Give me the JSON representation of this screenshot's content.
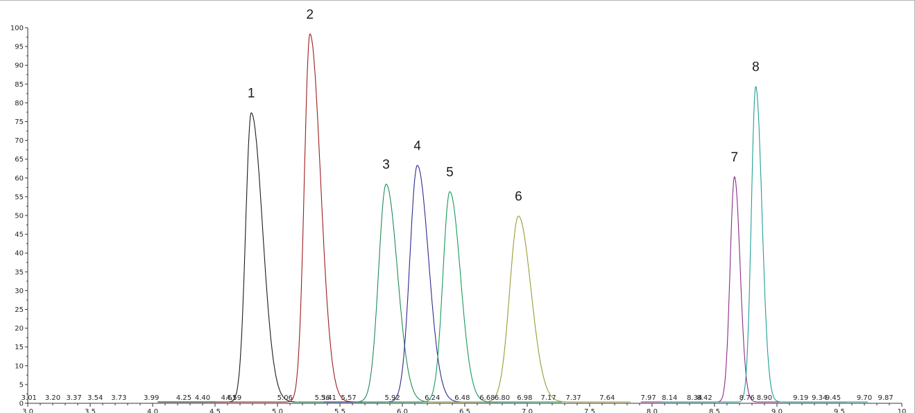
{
  "chart_data": {
    "type": "line",
    "title": "",
    "xlabel": "",
    "ylabel": "",
    "xlim": [
      3.0,
      10.0
    ],
    "ylim": [
      0,
      100
    ],
    "grid": false,
    "x_ticks": [
      3.0,
      3.5,
      4.0,
      4.5,
      5.0,
      5.5,
      6.0,
      6.5,
      7.0,
      7.5,
      8.0,
      8.5,
      9.0,
      9.5,
      10.0
    ],
    "x_tick_labels": [
      "3.0",
      "3.5",
      "4.0",
      "4.5",
      "5.0",
      "5.5",
      "6.0",
      "6.5",
      "7.0",
      "7.5",
      "8.0",
      "8.5",
      "9.0",
      "9.5",
      "10"
    ],
    "y_ticks": [
      0,
      5,
      10,
      15,
      20,
      25,
      30,
      35,
      40,
      45,
      50,
      55,
      60,
      65,
      70,
      75,
      80,
      85,
      90,
      95,
      100
    ],
    "y_tick_labels": [
      "0",
      "5",
      "10",
      "15",
      "20",
      "25",
      "30",
      "35",
      "40",
      "45",
      "50",
      "55",
      "60",
      "65",
      "70",
      "75",
      "80",
      "85",
      "90",
      "95",
      "100"
    ],
    "series": [
      {
        "label": "1",
        "retention_time": 4.79,
        "height": 77,
        "color": "#1a1a1a",
        "width_left": 0.045,
        "width_right": 0.09
      },
      {
        "label": "2",
        "retention_time": 5.26,
        "height": 98,
        "color": "#9b1c1c",
        "width_left": 0.045,
        "width_right": 0.085
      },
      {
        "label": "3",
        "retention_time": 5.87,
        "height": 58,
        "color": "#1f8a55",
        "width_left": 0.06,
        "width_right": 0.09
      },
      {
        "label": "4",
        "retention_time": 6.12,
        "height": 63,
        "color": "#2a2a8f",
        "width_left": 0.06,
        "width_right": 0.09
      },
      {
        "label": "5",
        "retention_time": 6.38,
        "height": 56,
        "color": "#159a59",
        "width_left": 0.055,
        "width_right": 0.085
      },
      {
        "label": "6",
        "retention_time": 6.93,
        "height": 49.5,
        "color": "#9a9a35",
        "width_left": 0.07,
        "width_right": 0.1
      },
      {
        "label": "7",
        "retention_time": 8.66,
        "height": 60,
        "color": "#8a2a8a",
        "width_left": 0.035,
        "width_right": 0.045
      },
      {
        "label": "8",
        "retention_time": 8.83,
        "height": 84,
        "color": "#1f9e95",
        "width_left": 0.035,
        "width_right": 0.05
      }
    ],
    "annotations": [
      {
        "text": "3.01",
        "x": 3.01
      },
      {
        "text": "3.20",
        "x": 3.2
      },
      {
        "text": "3.37",
        "x": 3.37
      },
      {
        "text": "3.54",
        "x": 3.54
      },
      {
        "text": "3.73",
        "x": 3.73
      },
      {
        "text": "3.99",
        "x": 3.99
      },
      {
        "text": "4.25",
        "x": 4.25
      },
      {
        "text": "4.40",
        "x": 4.4
      },
      {
        "text": "4.61",
        "x": 4.61
      },
      {
        "text": "4.59",
        "x": 4.65
      },
      {
        "text": "5.06",
        "x": 5.06
      },
      {
        "text": "5.36",
        "x": 5.36
      },
      {
        "text": "5.41",
        "x": 5.41
      },
      {
        "text": "5.57",
        "x": 5.57
      },
      {
        "text": "5.92",
        "x": 5.92
      },
      {
        "text": "6.24",
        "x": 6.24
      },
      {
        "text": "6.48",
        "x": 6.48
      },
      {
        "text": "6.68",
        "x": 6.68
      },
      {
        "text": "6.80",
        "x": 6.8
      },
      {
        "text": "6.98",
        "x": 6.98
      },
      {
        "text": "7.17",
        "x": 7.17
      },
      {
        "text": "7.37",
        "x": 7.37
      },
      {
        "text": "7.64",
        "x": 7.64
      },
      {
        "text": "7.97",
        "x": 7.97
      },
      {
        "text": "8.14",
        "x": 8.14
      },
      {
        "text": "8.34",
        "x": 8.34
      },
      {
        "text": "8.42",
        "x": 8.42
      },
      {
        "text": "8.76",
        "x": 8.76
      },
      {
        "text": "8.90",
        "x": 8.9
      },
      {
        "text": "9.19",
        "x": 9.19
      },
      {
        "text": "9.34",
        "x": 9.34
      },
      {
        "text": "9.45",
        "x": 9.45
      },
      {
        "text": "9.70",
        "x": 9.7
      },
      {
        "text": "9.87",
        "x": 9.87
      }
    ]
  }
}
